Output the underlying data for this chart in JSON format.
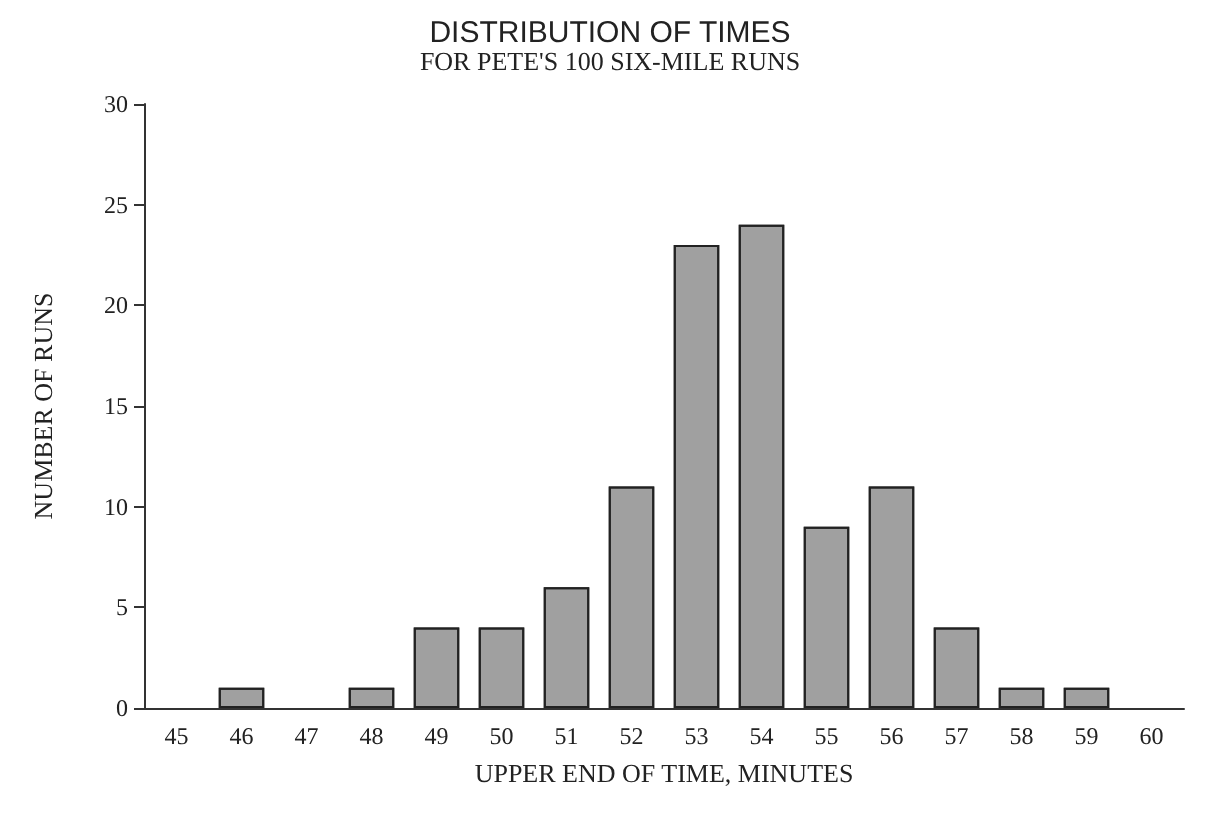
{
  "chart_data": {
    "type": "bar",
    "title": "DISTRIBUTION OF TIMES",
    "subtitle": "FOR PETE'S 100 SIX-MILE RUNS",
    "xlabel": "UPPER END OF TIME, MINUTES",
    "ylabel": "NUMBER OF RUNS",
    "categories": [
      "45",
      "46",
      "47",
      "48",
      "49",
      "50",
      "51",
      "52",
      "53",
      "54",
      "55",
      "56",
      "57",
      "58",
      "59",
      "60"
    ],
    "values": [
      null,
      1,
      null,
      1,
      4,
      4,
      6,
      11,
      23,
      24,
      9,
      11,
      4,
      1,
      1,
      null
    ],
    "color": "#a0a0a0",
    "ylim": [
      0,
      30
    ],
    "yticks": [
      0,
      5,
      10,
      15,
      20,
      25,
      30
    ],
    "grid": false
  }
}
